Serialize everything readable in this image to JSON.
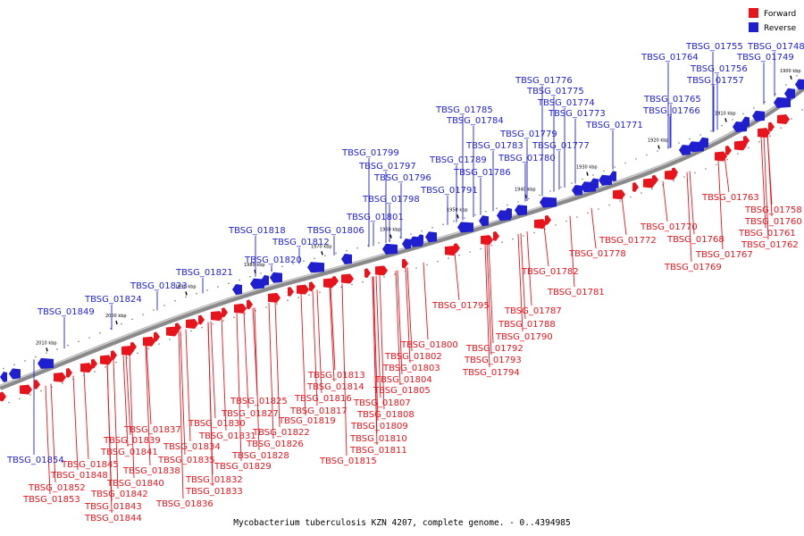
{
  "caption": "Mycobacterium tuberculosis KZN 4207, complete genome. - 0..4394985",
  "colors": {
    "forward": "#e8141b",
    "reverse": "#1f1fd0",
    "backbone": "#888888"
  },
  "legend": [
    {
      "label": "Forward",
      "color": "#e8141b"
    },
    {
      "label": "Reverse",
      "color": "#1f1fd0"
    }
  ],
  "kbp_marks": [
    "1900 kbp",
    "1910 kbp",
    "1920 kbp",
    "1930 kbp",
    "1940 kbp",
    "1950 kbp",
    "1960 kbp",
    "1970 kbp",
    "1980 kbp",
    "1990 kbp",
    "2000 kbp",
    "2010 kbp"
  ],
  "forward_genes": [
    "TBSG_01758",
    "TBSG_01760",
    "TBSG_01761",
    "TBSG_01762",
    "TBSG_01763",
    "TBSG_01767",
    "TBSG_01768",
    "TBSG_01769",
    "TBSG_01770",
    "TBSG_01772",
    "TBSG_01778",
    "TBSG_01781",
    "TBSG_01782",
    "TBSG_01787",
    "TBSG_01788",
    "TBSG_01790",
    "TBSG_01792",
    "TBSG_01793",
    "TBSG_01794",
    "TBSG_01795",
    "TBSG_01800",
    "TBSG_01802",
    "TBSG_01803",
    "TBSG_01804",
    "TBSG_01805",
    "TBSG_01807",
    "TBSG_01808",
    "TBSG_01809",
    "TBSG_01810",
    "TBSG_01811",
    "TBSG_01813",
    "TBSG_01814",
    "TBSG_01815",
    "TBSG_01816",
    "TBSG_01817",
    "TBSG_01819",
    "TBSG_01822",
    "TBSG_01825",
    "TBSG_01826",
    "TBSG_01827",
    "TBSG_01828",
    "TBSG_01829",
    "TBSG_01830",
    "TBSG_01831",
    "TBSG_01832",
    "TBSG_01833",
    "TBSG_01834",
    "TBSG_01835",
    "TBSG_01836",
    "TBSG_01837",
    "TBSG_01838",
    "TBSG_01839",
    "TBSG_01840",
    "TBSG_01841",
    "TBSG_01842",
    "TBSG_01843",
    "TBSG_01844",
    "TBSG_01845",
    "TBSG_01848",
    "TBSG_01852",
    "TBSG_01853"
  ],
  "reverse_genes": [
    "TBSG_01748",
    "TBSG_01749",
    "TBSG_01755",
    "TBSG_01756",
    "TBSG_01757",
    "TBSG_01764",
    "TBSG_01765",
    "TBSG_01766",
    "TBSG_01771",
    "TBSG_01773",
    "TBSG_01774",
    "TBSG_01775",
    "TBSG_01776",
    "TBSG_01777",
    "TBSG_01779",
    "TBSG_01780",
    "TBSG_01783",
    "TBSG_01784",
    "TBSG_01785",
    "TBSG_01786",
    "TBSG_01789",
    "TBSG_01791",
    "TBSG_01796",
    "TBSG_01797",
    "TBSG_01798",
    "TBSG_01799",
    "TBSG_01801",
    "TBSG_01806",
    "TBSG_01812",
    "TBSG_01818",
    "TBSG_01820",
    "TBSG_01821",
    "TBSG_01823",
    "TBSG_01824",
    "TBSG_01849",
    "TBSG_01854"
  ]
}
